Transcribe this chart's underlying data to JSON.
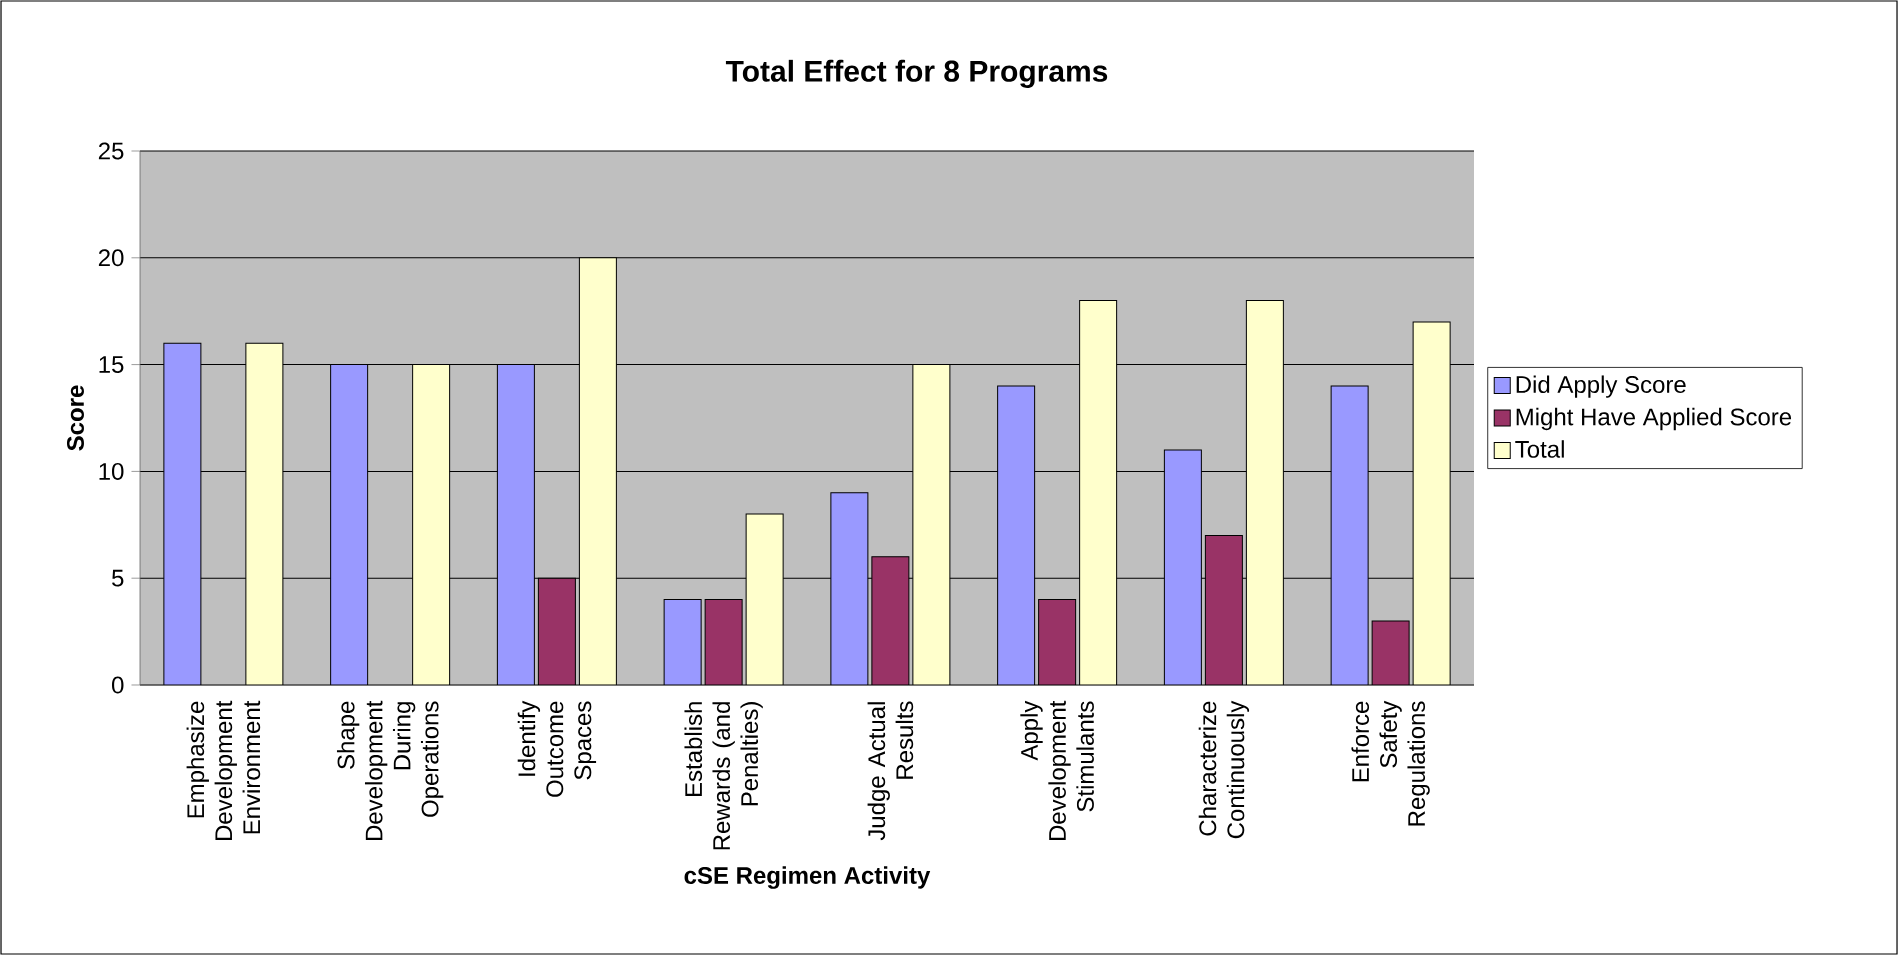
{
  "chart_data": {
    "type": "bar",
    "title": "Total Effect for 8 Programs",
    "xlabel": "cSE Regimen Activity",
    "ylabel": "Score",
    "categories": [
      "Emphasize Development Environment",
      "Shape Development During Operations",
      "Identify Outcome Spaces",
      "Establish Rewards (and Penalties)",
      "Judge Actual Results",
      "Apply Development Stimulants",
      "Characterize Continuously",
      "Enforce Safety Regulations"
    ],
    "series": [
      {
        "name": "Did Apply Score",
        "color": "#9999ff",
        "values": [
          16,
          15,
          15,
          4,
          9,
          14,
          11,
          14
        ]
      },
      {
        "name": "Might Have Applied Score",
        "color": "#993366",
        "values": [
          null,
          null,
          5,
          4,
          6,
          4,
          7,
          3
        ]
      },
      {
        "name": "Total",
        "color": "#ffffcc",
        "values": [
          16,
          15,
          20,
          8,
          15,
          18,
          18,
          17
        ]
      }
    ],
    "ylim": [
      0,
      25
    ],
    "yticks": [
      0,
      5,
      10,
      15,
      20,
      25
    ],
    "grid": "y",
    "legend": "right"
  }
}
